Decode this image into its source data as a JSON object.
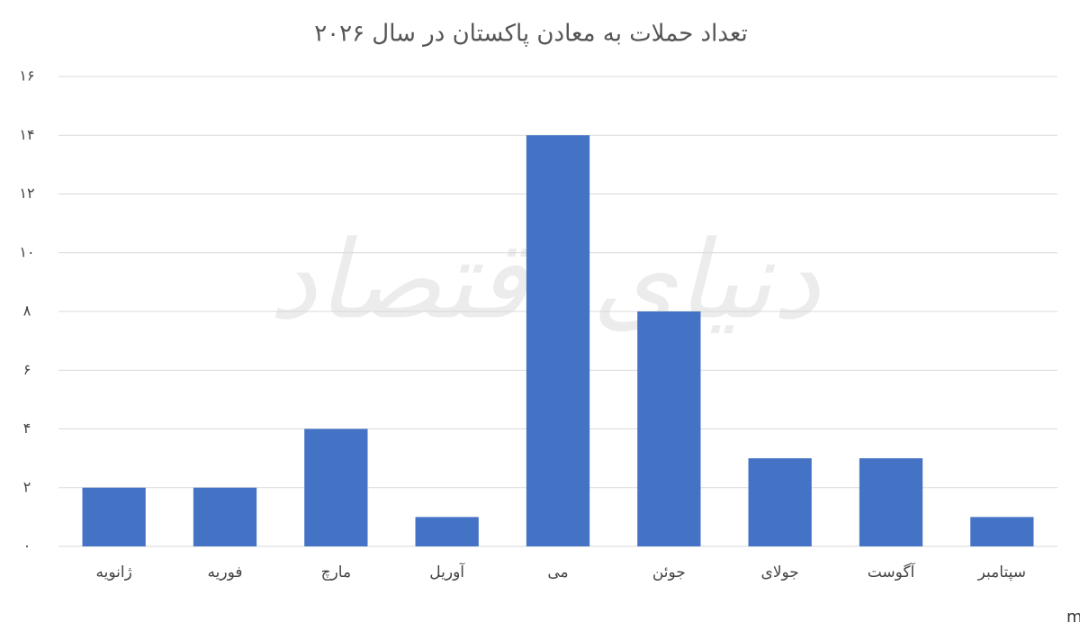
{
  "chart_data": {
    "type": "bar",
    "title": "تعداد حملات به معادن پاکستان در سال ۲۰۲۶",
    "categories": [
      "ژانویه",
      "فوریه",
      "مارچ",
      "آوریل",
      "می",
      "جوئن",
      "جولای",
      "آگوست",
      "سپتامبر"
    ],
    "values": [
      2,
      2,
      4,
      1,
      14,
      8,
      3,
      3,
      1
    ],
    "color": "#4472c4",
    "ylim": [
      0,
      16
    ],
    "yticks": [
      {
        "value": 0,
        "label": "۰"
      },
      {
        "value": 2,
        "label": "۲"
      },
      {
        "value": 4,
        "label": "۴"
      },
      {
        "value": 6,
        "label": "۶"
      },
      {
        "value": 8,
        "label": "۸"
      },
      {
        "value": 10,
        "label": "۱۰"
      },
      {
        "value": 12,
        "label": "۱۲"
      },
      {
        "value": 14,
        "label": "۱۴"
      },
      {
        "value": 16,
        "label": "۱۶"
      }
    ],
    "grid": true,
    "source": "منبع: mining.com",
    "watermark": "دنیای اقتصاد"
  }
}
